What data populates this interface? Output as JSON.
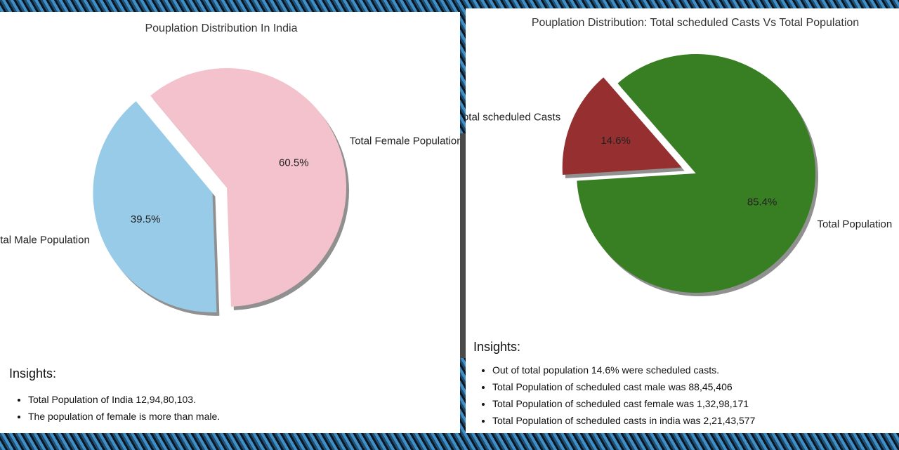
{
  "chart_data": [
    {
      "type": "pie",
      "title": "Pouplation Distribution In India",
      "labels": [
        "Total Male Population",
        "Total Female Population"
      ],
      "values": [
        39.5,
        60.5
      ],
      "autopct_labels": [
        "39.5%",
        "60.5%"
      ],
      "colors": [
        "#97cbe8",
        "#f4c2cc"
      ],
      "explode": [
        true,
        false
      ],
      "shadow": true
    },
    {
      "type": "pie",
      "title": "Pouplation Distribution: Total scheduled Casts Vs Total Population",
      "labels": [
        "Total scheduled Casts",
        "Total Population"
      ],
      "values": [
        14.6,
        85.4
      ],
      "autopct_labels": [
        "14.6%",
        "85.4%"
      ],
      "colors": [
        "#963030",
        "#387e22"
      ],
      "explode": [
        true,
        false
      ],
      "shadow": true
    }
  ],
  "left_insights": {
    "title": "Insights:",
    "items": [
      "Total Population of India 12,94,80,103.",
      "The population of female is more than male."
    ]
  },
  "right_insights": {
    "title": "Insights:",
    "items": [
      "Out of total population 14.6% were scheduled casts.",
      "Total Population of scheduled cast male was 88,45,406",
      "Total Population of scheduled cast female was 1,32,98,171",
      "Total Population of scheduled casts in india was 2,21,43,577"
    ]
  }
}
